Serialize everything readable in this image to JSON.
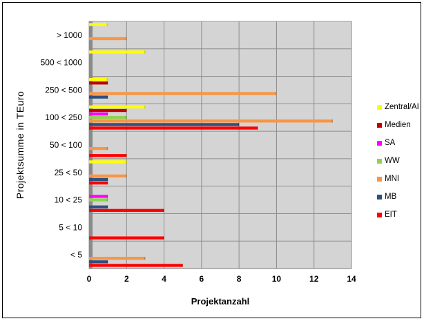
{
  "chart_data": {
    "type": "bar",
    "orientation": "horizontal",
    "xlabel": "Projektanzahl",
    "ylabel": "Projektsumme in TEuro",
    "xlim": [
      0,
      14
    ],
    "xticks": [
      0,
      2,
      4,
      6,
      8,
      10,
      12,
      14
    ],
    "grid": true,
    "plot_background": "#d4d4d4",
    "legend_position": "right",
    "categories": [
      "< 5",
      "5 < 10",
      "10 < 25",
      "25 < 50",
      "50 < 100",
      "100 < 250",
      "250 < 500",
      "500 < 1000",
      "> 1000"
    ],
    "series": [
      {
        "name": "EIT",
        "color": "#ff0000",
        "values": [
          5,
          4,
          4,
          1,
          2,
          9,
          0,
          0,
          0
        ]
      },
      {
        "name": "MB",
        "color": "#2f4f7f",
        "values": [
          1,
          0,
          1,
          1,
          0,
          8,
          1,
          0,
          0
        ]
      },
      {
        "name": "MNI",
        "color": "#f79646",
        "values": [
          3,
          0,
          0,
          2,
          1,
          13,
          10,
          0,
          2
        ]
      },
      {
        "name": "WW",
        "color": "#92d050",
        "values": [
          0,
          0,
          1,
          0,
          0,
          2,
          0,
          0,
          0
        ]
      },
      {
        "name": "SA",
        "color": "#ff00ff",
        "values": [
          0,
          0,
          1,
          0,
          0,
          1,
          0,
          0,
          0
        ]
      },
      {
        "name": "Medien",
        "color": "#c00000",
        "values": [
          0,
          0,
          0,
          0,
          0,
          2,
          1,
          0,
          0
        ]
      },
      {
        "name": "Zentral/AI",
        "color": "#ffff00",
        "values": [
          0,
          0,
          0,
          2,
          0,
          3,
          1,
          3,
          1
        ]
      }
    ]
  }
}
